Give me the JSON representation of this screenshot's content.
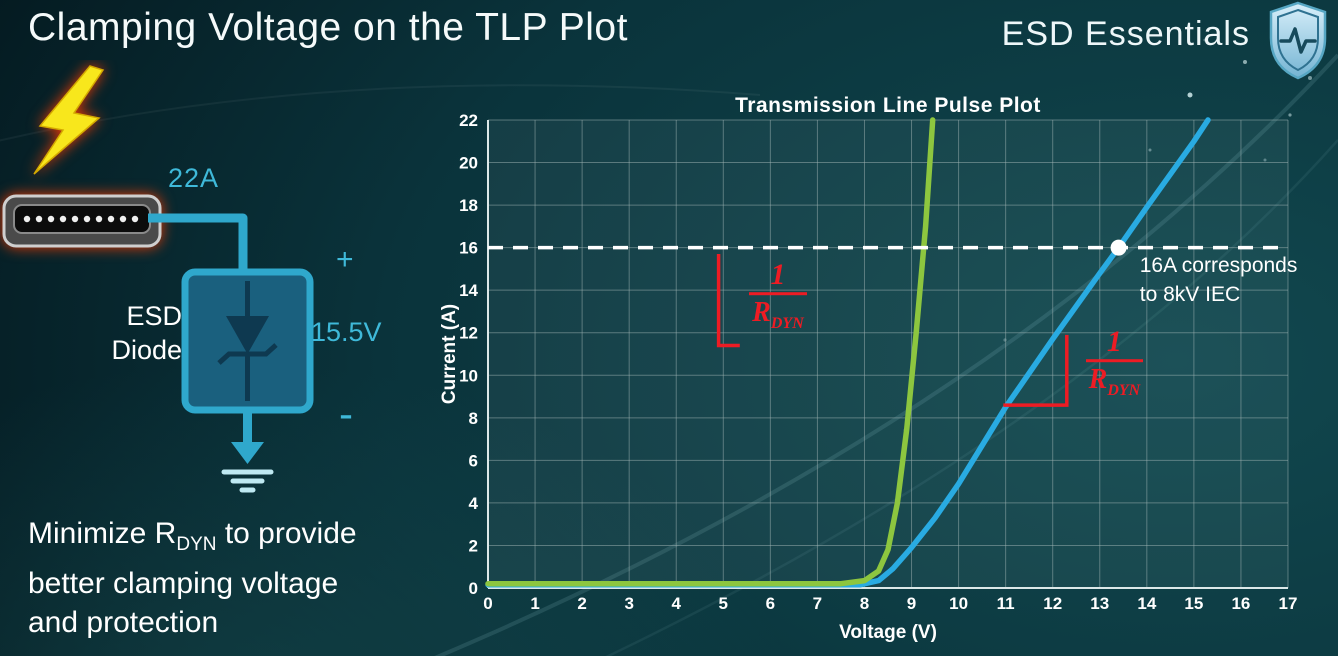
{
  "slide": {
    "title": "Clamping Voltage on the TLP Plot",
    "brand": "ESD Essentials"
  },
  "diagram": {
    "surge_current": "22A",
    "device_line1": "ESD",
    "device_line2": "Diode",
    "plus_sign": "+",
    "clamp_voltage": "15.5V",
    "minus_sign": "-"
  },
  "note": {
    "line1_prefix": "Minimize R",
    "line1_sub": "DYN",
    "line1_suffix": " to provide",
    "line2": "better clamping voltage",
    "line3": "and protection"
  },
  "chart_data": {
    "type": "line",
    "title": "Transmission Line Pulse Plot",
    "xlabel": "Voltage (V)",
    "ylabel": "Current (A)",
    "xlim": [
      0,
      17
    ],
    "ylim": [
      0,
      22
    ],
    "x_tick_step": 1,
    "y_tick_step": 2,
    "grid": true,
    "legend": "none",
    "series": [
      {
        "name": "blue-curve-higher-rdyn",
        "color": "#29abe2",
        "points": [
          [
            0,
            0.15
          ],
          [
            7.9,
            0.15
          ],
          [
            8.3,
            0.35
          ],
          [
            8.6,
            0.9
          ],
          [
            9,
            1.9
          ],
          [
            9.5,
            3.3
          ],
          [
            10,
            4.9
          ],
          [
            10.5,
            6.7
          ],
          [
            11,
            8.5
          ],
          [
            12,
            11.7
          ],
          [
            13,
            14.8
          ],
          [
            13.4,
            16
          ],
          [
            14,
            17.9
          ],
          [
            15,
            21
          ],
          [
            15.3,
            22
          ]
        ]
      },
      {
        "name": "green-curve-lower-rdyn",
        "color": "#8dc63f",
        "points": [
          [
            0,
            0.2
          ],
          [
            7.5,
            0.2
          ],
          [
            8,
            0.35
          ],
          [
            8.3,
            0.8
          ],
          [
            8.5,
            1.8
          ],
          [
            8.7,
            4
          ],
          [
            8.9,
            7.5
          ],
          [
            9.1,
            12
          ],
          [
            9.3,
            17
          ],
          [
            9.45,
            22
          ]
        ]
      }
    ],
    "threshold": {
      "y": 16,
      "color": "#ffffff",
      "style": "dashed",
      "marker_x": 13.4,
      "label_line1": "16A corresponds",
      "label_line2": "to 8kV IEC",
      "label_x": 13.85,
      "label_y": 15.85
    },
    "slope_annotations": [
      {
        "name": "green-slope-callout",
        "color": "#ed1c24",
        "numerator": "1",
        "denominator": "R",
        "denominator_sub": "DYN",
        "line_points": [
          [
            4.9,
            15.7
          ],
          [
            4.9,
            11.4
          ],
          [
            5.35,
            11.4
          ]
        ],
        "label_x": 5.55,
        "label_y": 13.55
      },
      {
        "name": "blue-slope-callout",
        "color": "#ed1c24",
        "numerator": "1",
        "denominator": "R",
        "denominator_sub": "DYN",
        "line_points": [
          [
            10.95,
            8.6
          ],
          [
            12.3,
            8.6
          ],
          [
            12.3,
            11.9
          ]
        ],
        "label_x": 12.7,
        "label_y": 10.4
      }
    ]
  }
}
